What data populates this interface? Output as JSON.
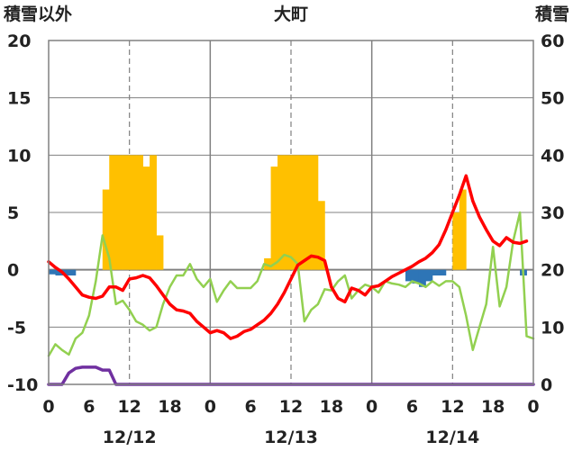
{
  "chart_data": {
    "type": "bar+line",
    "title": "大町",
    "left_axis_title": "積雪以外",
    "right_axis_title": "積雪",
    "y_left": {
      "min": -10,
      "max": 20,
      "ticks": [
        -10,
        -5,
        0,
        5,
        10,
        15,
        20
      ]
    },
    "y_right": {
      "min": 0,
      "max": 60,
      "ticks": [
        0,
        10,
        20,
        30,
        40,
        50,
        60
      ]
    },
    "x": {
      "min": 0,
      "max": 72,
      "hour_ticks": [
        0,
        6,
        12,
        18,
        0,
        6,
        12,
        18,
        0,
        6,
        12,
        18,
        0
      ]
    },
    "dates": [
      {
        "hour": 12,
        "label": "12/12"
      },
      {
        "hour": 36,
        "label": "12/13"
      },
      {
        "hour": 60,
        "label": "12/14"
      }
    ],
    "day_boundaries": [
      24,
      48
    ],
    "noon_lines": [
      12,
      36,
      60
    ],
    "colors": {
      "precip": "#ffc000",
      "temp": "#ff0000",
      "green_line": "#92d050",
      "blue_bars": "#2e75b6",
      "snow_depth": "#7030a0",
      "grid": "#808080"
    },
    "series": [
      {
        "role": "precip-bars",
        "axis": "left",
        "points": [
          [
            8.5,
            7
          ],
          [
            9.5,
            10
          ],
          [
            10.5,
            10
          ],
          [
            11.5,
            10
          ],
          [
            12.5,
            10
          ],
          [
            13.5,
            10
          ],
          [
            14.5,
            9
          ],
          [
            15.5,
            10
          ],
          [
            16.5,
            3
          ],
          [
            32.5,
            1
          ],
          [
            33.5,
            9
          ],
          [
            34.5,
            10
          ],
          [
            35.5,
            10
          ],
          [
            36.5,
            10
          ],
          [
            37.5,
            10
          ],
          [
            38.5,
            10
          ],
          [
            39.5,
            10
          ],
          [
            40.5,
            6
          ],
          [
            60.5,
            5
          ],
          [
            61.5,
            7
          ]
        ]
      },
      {
        "role": "blue-bars",
        "axis": "left",
        "points": [
          [
            0.5,
            -0.4
          ],
          [
            1.5,
            -0.5
          ],
          [
            2.5,
            -0.5
          ],
          [
            3.5,
            -0.5
          ],
          [
            53.5,
            -1
          ],
          [
            54.5,
            -1.2
          ],
          [
            55.5,
            -1.5
          ],
          [
            56.5,
            -1
          ],
          [
            57.5,
            -0.5
          ],
          [
            58.5,
            -0.5
          ],
          [
            70.5,
            -0.5
          ]
        ]
      },
      {
        "role": "temperature",
        "axis": "left",
        "points": [
          [
            0,
            0.7
          ],
          [
            1,
            0.2
          ],
          [
            2,
            -0.2
          ],
          [
            3,
            -0.8
          ],
          [
            4,
            -1.5
          ],
          [
            5,
            -2.2
          ],
          [
            6,
            -2.4
          ],
          [
            7,
            -2.5
          ],
          [
            8,
            -2.3
          ],
          [
            9,
            -1.5
          ],
          [
            10,
            -1.5
          ],
          [
            11,
            -1.8
          ],
          [
            12,
            -0.8
          ],
          [
            13,
            -0.7
          ],
          [
            14,
            -0.5
          ],
          [
            15,
            -0.7
          ],
          [
            16,
            -1.4
          ],
          [
            17,
            -2.2
          ],
          [
            18,
            -3
          ],
          [
            19,
            -3.5
          ],
          [
            20,
            -3.6
          ],
          [
            21,
            -3.8
          ],
          [
            22,
            -4.5
          ],
          [
            23,
            -5
          ],
          [
            24,
            -5.5
          ],
          [
            25,
            -5.3
          ],
          [
            26,
            -5.5
          ],
          [
            27,
            -6
          ],
          [
            28,
            -5.8
          ],
          [
            29,
            -5.4
          ],
          [
            30,
            -5.2
          ],
          [
            31,
            -4.8
          ],
          [
            32,
            -4.4
          ],
          [
            33,
            -3.8
          ],
          [
            34,
            -3
          ],
          [
            35,
            -2
          ],
          [
            36,
            -0.8
          ],
          [
            37,
            0.4
          ],
          [
            38,
            0.8
          ],
          [
            39,
            1.2
          ],
          [
            40,
            1.1
          ],
          [
            41,
            0.8
          ],
          [
            42,
            -1.5
          ],
          [
            43,
            -2.5
          ],
          [
            44,
            -2.8
          ],
          [
            45,
            -1.6
          ],
          [
            46,
            -1.8
          ],
          [
            47,
            -2.2
          ],
          [
            48,
            -1.5
          ],
          [
            49,
            -1.4
          ],
          [
            50,
            -1
          ],
          [
            51,
            -0.6
          ],
          [
            52,
            -0.3
          ],
          [
            53,
            0
          ],
          [
            54,
            0.3
          ],
          [
            55,
            0.7
          ],
          [
            56,
            1
          ],
          [
            57,
            1.5
          ],
          [
            58,
            2.2
          ],
          [
            59,
            3.5
          ],
          [
            60,
            5
          ],
          [
            61,
            6.5
          ],
          [
            62,
            8.2
          ],
          [
            63,
            6
          ],
          [
            64,
            4.6
          ],
          [
            65,
            3.5
          ],
          [
            66,
            2.5
          ],
          [
            67,
            2.1
          ],
          [
            68,
            2.8
          ],
          [
            69,
            2.4
          ],
          [
            70,
            2.3
          ],
          [
            71,
            2.5
          ]
        ]
      },
      {
        "role": "green-line",
        "axis": "left",
        "points": [
          [
            0,
            -7.5
          ],
          [
            1,
            -6.5
          ],
          [
            2,
            -7
          ],
          [
            3,
            -7.4
          ],
          [
            4,
            -6
          ],
          [
            5,
            -5.5
          ],
          [
            6,
            -4
          ],
          [
            7,
            -1
          ],
          [
            8,
            3
          ],
          [
            9,
            1
          ],
          [
            10,
            -3
          ],
          [
            11,
            -2.7
          ],
          [
            12,
            -3.5
          ],
          [
            13,
            -4.5
          ],
          [
            14,
            -4.8
          ],
          [
            15,
            -5.3
          ],
          [
            16,
            -5
          ],
          [
            17,
            -3
          ],
          [
            18,
            -1.5
          ],
          [
            19,
            -0.5
          ],
          [
            20,
            -0.5
          ],
          [
            21,
            0.5
          ],
          [
            22,
            -0.8
          ],
          [
            23,
            -1.5
          ],
          [
            24,
            -0.8
          ],
          [
            25,
            -2.8
          ],
          [
            26,
            -1.8
          ],
          [
            27,
            -1
          ],
          [
            28,
            -1.6
          ],
          [
            29,
            -1.6
          ],
          [
            30,
            -1.6
          ],
          [
            31,
            -1
          ],
          [
            32,
            0.5
          ],
          [
            33,
            0.3
          ],
          [
            34,
            0.7
          ],
          [
            35,
            1.3
          ],
          [
            36,
            1.1
          ],
          [
            37,
            0.5
          ],
          [
            38,
            -4.5
          ],
          [
            39,
            -3.5
          ],
          [
            40,
            -3
          ],
          [
            41,
            -1.7
          ],
          [
            42,
            -1.8
          ],
          [
            43,
            -1
          ],
          [
            44,
            -0.5
          ],
          [
            45,
            -2.5
          ],
          [
            46,
            -1.8
          ],
          [
            47,
            -1.3
          ],
          [
            48,
            -1.5
          ],
          [
            49,
            -2
          ],
          [
            50,
            -1
          ],
          [
            51,
            -1.2
          ],
          [
            52,
            -1.3
          ],
          [
            53,
            -1.5
          ],
          [
            54,
            -1
          ],
          [
            55,
            -1.2
          ],
          [
            56,
            -1.5
          ],
          [
            57,
            -1
          ],
          [
            58,
            -1.4
          ],
          [
            59,
            -1
          ],
          [
            60,
            -1
          ],
          [
            61,
            -1.5
          ],
          [
            62,
            -4
          ],
          [
            63,
            -7
          ],
          [
            64,
            -5
          ],
          [
            65,
            -3
          ],
          [
            66,
            2
          ],
          [
            67,
            -3.2
          ],
          [
            68,
            -1.5
          ],
          [
            69,
            2.5
          ],
          [
            70,
            5
          ],
          [
            71,
            -5.8
          ],
          [
            72,
            -6
          ]
        ]
      },
      {
        "role": "snow-depth",
        "axis": "right",
        "points": [
          [
            0,
            0
          ],
          [
            1,
            0
          ],
          [
            2,
            0
          ],
          [
            3,
            2
          ],
          [
            4,
            2.8
          ],
          [
            5,
            3
          ],
          [
            6,
            3
          ],
          [
            7,
            3
          ],
          [
            8,
            2.5
          ],
          [
            9,
            2.5
          ],
          [
            10,
            0
          ],
          [
            72,
            0
          ]
        ]
      }
    ]
  }
}
